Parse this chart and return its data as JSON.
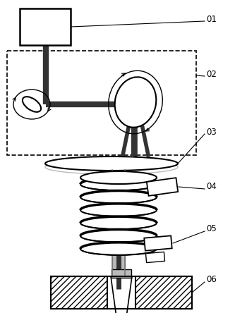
{
  "labels": [
    "01",
    "02",
    "03",
    "04",
    "05",
    "06"
  ],
  "bg_color": "#ffffff",
  "line_color": "#000000",
  "dark_gray": "#333333",
  "light_gray": "#bbbbbb",
  "mid_gray": "#777777"
}
